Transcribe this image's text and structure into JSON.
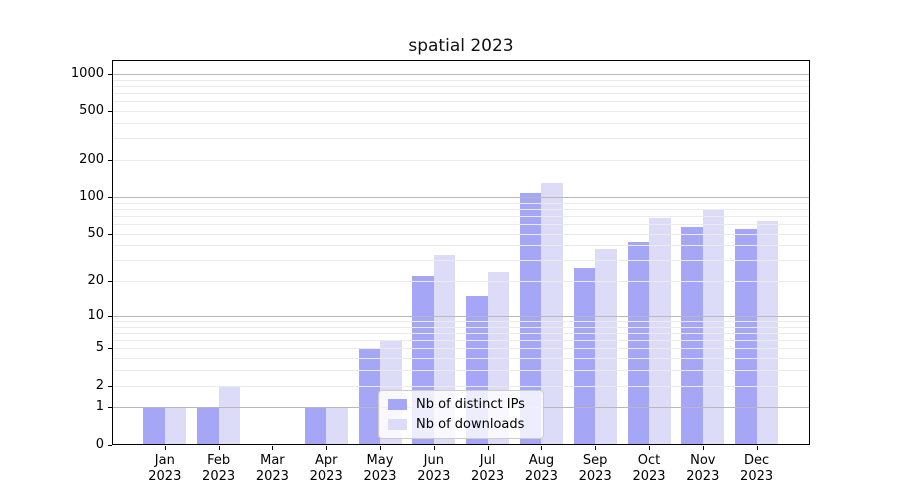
{
  "chart_data": {
    "type": "bar",
    "title": "spatial 2023",
    "categories": [
      "Jan",
      "Feb",
      "Mar",
      "Apr",
      "May",
      "Jun",
      "Jul",
      "Aug",
      "Sep",
      "Oct",
      "Nov",
      "Dec"
    ],
    "category_year": "2023",
    "series": [
      {
        "name": "Nb of distinct IPs",
        "color": "#a6a6f6",
        "values": [
          1,
          1,
          0,
          1,
          5,
          22,
          15,
          108,
          26,
          43,
          57,
          55
        ]
      },
      {
        "name": "Nb of downloads",
        "color": "#dcdcf9",
        "values": [
          1,
          2,
          0,
          1,
          6,
          33,
          24,
          130,
          37,
          67,
          78,
          63
        ]
      }
    ],
    "yscale": "log(1+x)",
    "y_ticks": [
      0,
      1,
      2,
      5,
      10,
      20,
      50,
      100,
      200,
      500,
      1000
    ],
    "y_major_gridlines": [
      1,
      10,
      100,
      1000
    ],
    "y_minor_gridlines": [
      2,
      3,
      4,
      5,
      6,
      7,
      8,
      9,
      20,
      30,
      40,
      50,
      60,
      70,
      80,
      90,
      200,
      300,
      400,
      500,
      600,
      700,
      800,
      900
    ],
    "ylim": [
      0,
      1300
    ],
    "grid": true,
    "legend_position": "lower center"
  }
}
